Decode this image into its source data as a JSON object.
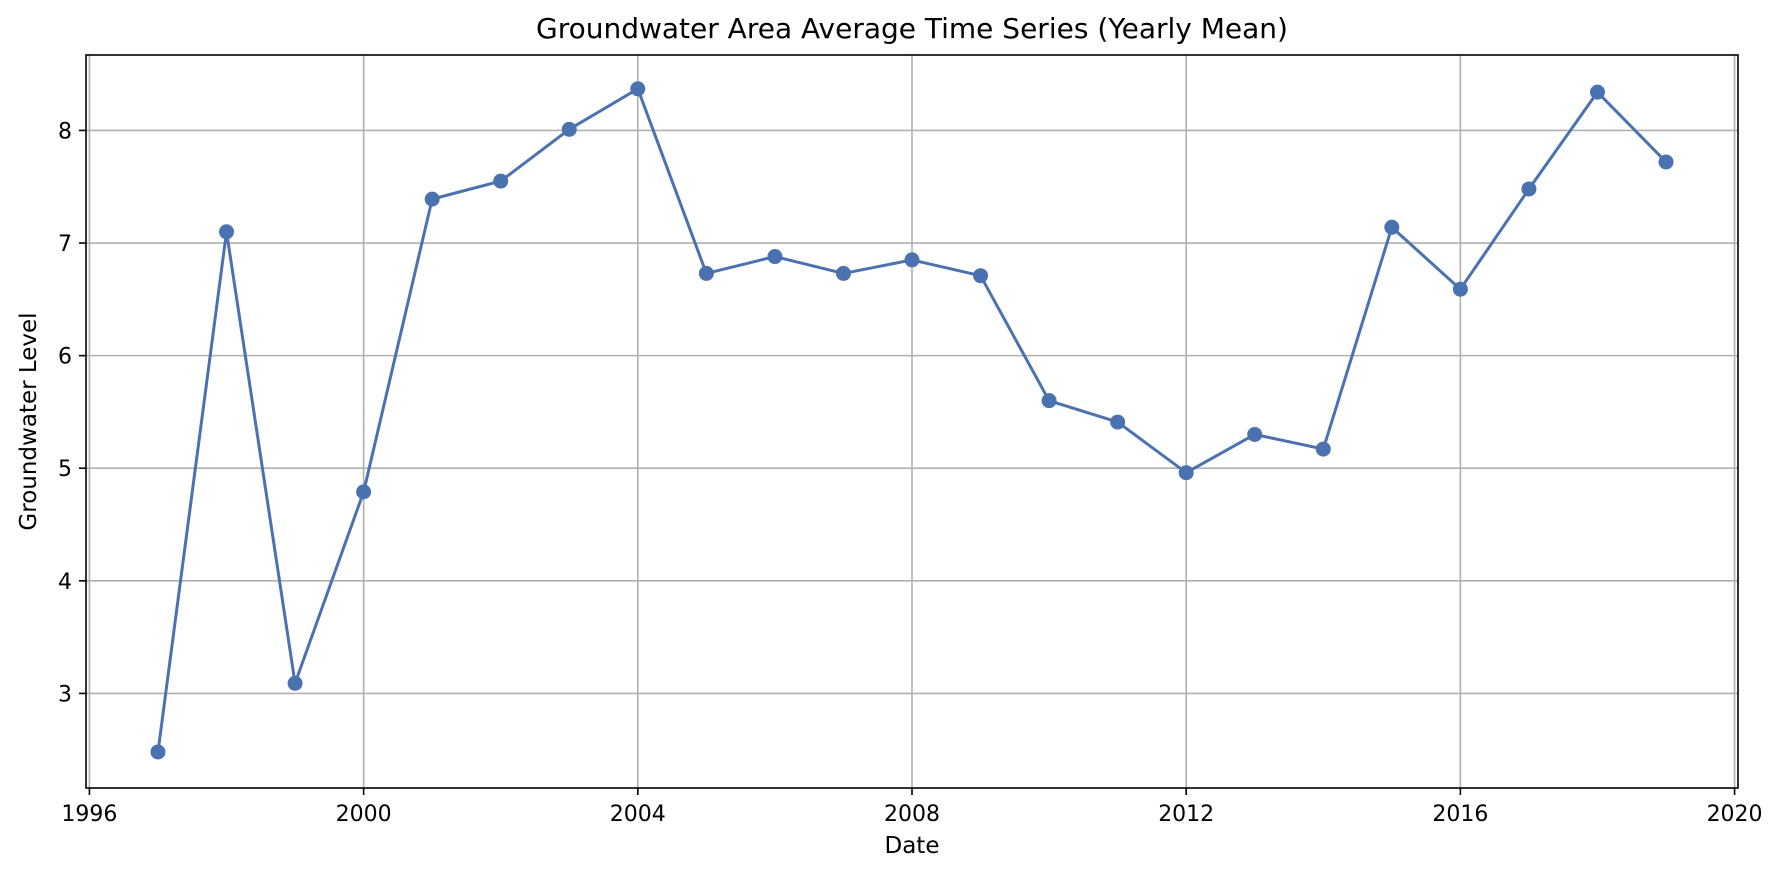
{
  "chart_data": {
    "type": "line",
    "title": "Groundwater Area Average Time Series (Yearly Mean)",
    "xlabel": "Date",
    "ylabel": "Groundwater Level",
    "xlim": [
      1995.95,
      2020.05
    ],
    "ylim": [
      2.16,
      8.67
    ],
    "x_ticks": [
      1996,
      2000,
      2004,
      2008,
      2012,
      2016,
      2020
    ],
    "x_tick_labels": [
      "1996",
      "2000",
      "2004",
      "2008",
      "2012",
      "2016",
      "2020"
    ],
    "y_ticks": [
      3,
      4,
      5,
      6,
      7,
      8
    ],
    "y_tick_labels": [
      "3",
      "4",
      "5",
      "6",
      "7",
      "8"
    ],
    "grid": true,
    "legend": "none",
    "color": "#4a72b0",
    "marker": "circle",
    "series": [
      {
        "x": [
          1997,
          1998,
          1999,
          2000,
          2001,
          2002,
          2003,
          2004,
          2005,
          2006,
          2007,
          2008,
          2009,
          2010,
          2011,
          2012,
          2013,
          2014,
          2015,
          2016,
          2017,
          2018,
          2019
        ],
        "values": [
          2.48,
          7.1,
          3.09,
          4.79,
          7.39,
          7.55,
          8.01,
          8.37,
          6.73,
          6.88,
          6.73,
          6.85,
          6.71,
          5.6,
          5.41,
          4.96,
          5.3,
          5.17,
          7.14,
          6.59,
          7.48,
          8.34,
          7.72
        ]
      }
    ]
  }
}
